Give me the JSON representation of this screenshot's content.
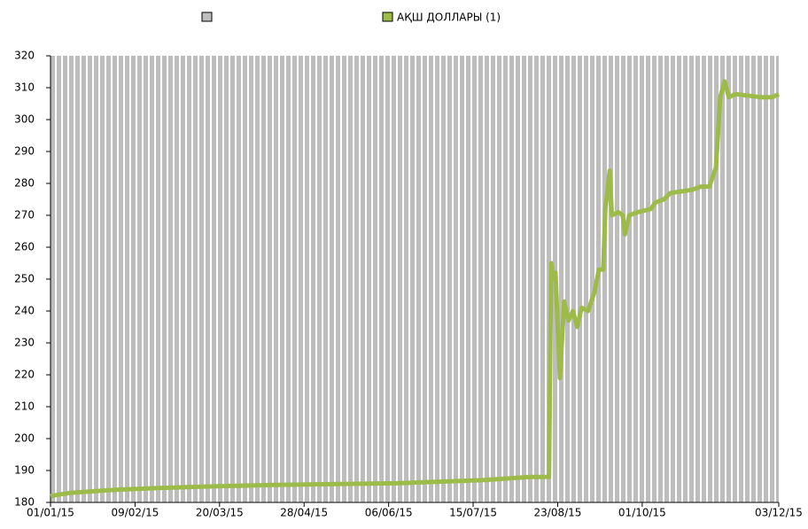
{
  "chart_data": {
    "type": "line",
    "legend_position": "top",
    "background_color": "#bdbdbd",
    "x": [
      "2015-01-01",
      "2015-01-10",
      "2015-02-01",
      "2015-02-20",
      "2015-03-15",
      "2015-04-15",
      "2015-06-10",
      "2015-07-20",
      "2015-08-10",
      "2015-08-19",
      "2015-08-20",
      "2015-08-21",
      "2015-08-22",
      "2015-08-24",
      "2015-08-26",
      "2015-08-28",
      "2015-08-30",
      "2015-09-01",
      "2015-09-03",
      "2015-09-06",
      "2015-09-09",
      "2015-09-11",
      "2015-09-13",
      "2015-09-14",
      "2015-09-16",
      "2015-09-17",
      "2015-09-20",
      "2015-09-22",
      "2015-09-23",
      "2015-09-25",
      "2015-09-29",
      "2015-10-05",
      "2015-10-07",
      "2015-10-11",
      "2015-10-14",
      "2015-10-19",
      "2015-10-24",
      "2015-10-28",
      "2015-11-01",
      "2015-11-04",
      "2015-11-06",
      "2015-11-08",
      "2015-11-10",
      "2015-11-13",
      "2015-11-19",
      "2015-11-25",
      "2015-11-30",
      "2015-12-03"
    ],
    "series": [
      {
        "name": "АҚШ ДОЛЛАРЫ (1)",
        "color": "#9dbb49",
        "values": [
          182,
          183,
          184,
          184.5,
          185,
          185.5,
          186,
          187,
          188,
          188,
          255,
          250,
          252,
          219,
          243,
          237,
          240,
          235,
          241,
          240,
          246,
          253,
          253,
          272,
          284,
          270,
          271,
          270,
          264,
          270,
          271,
          272,
          274,
          275,
          277,
          277.5,
          278,
          279,
          279,
          285,
          307,
          312,
          307,
          308,
          307.5,
          307,
          307,
          308
        ]
      }
    ],
    "xlim": [
      "2015-01-01",
      "2015-12-03"
    ],
    "xticks": [
      {
        "value": "2015-01-01",
        "label": "01/01/15"
      },
      {
        "value": "2015-02-09",
        "label": "09/02/15"
      },
      {
        "value": "2015-03-20",
        "label": "20/03/15"
      },
      {
        "value": "2015-04-28",
        "label": "28/04/15"
      },
      {
        "value": "2015-06-06",
        "label": "06/06/15"
      },
      {
        "value": "2015-07-15",
        "label": "15/07/15"
      },
      {
        "value": "2015-08-23",
        "label": "23/08/15"
      },
      {
        "value": "2015-10-01",
        "label": "01/10/15"
      },
      {
        "value": "2015-12-03",
        "label": "03/12/15"
      }
    ],
    "ylim": [
      180,
      320
    ],
    "yticks": [
      180,
      190,
      200,
      210,
      220,
      230,
      240,
      250,
      260,
      270,
      280,
      290,
      300,
      310,
      320
    ]
  }
}
